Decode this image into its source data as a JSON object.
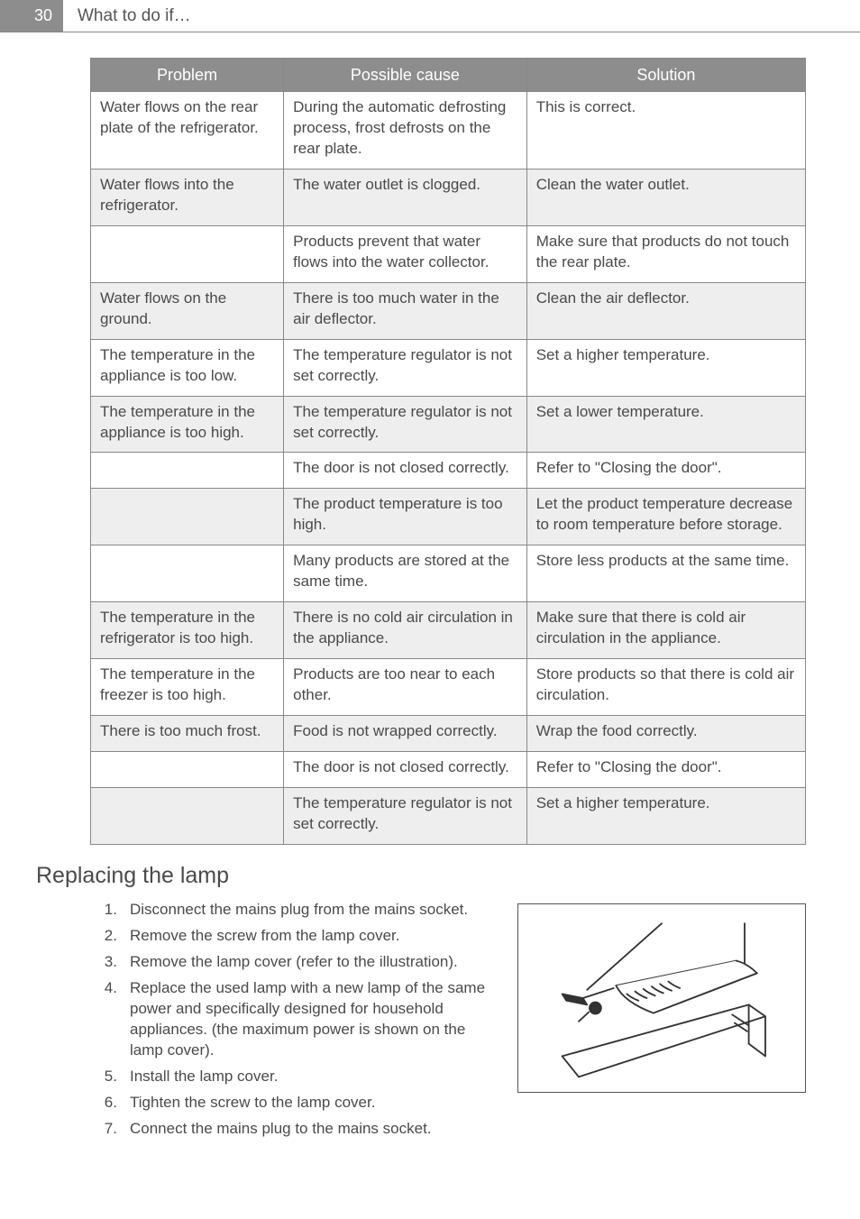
{
  "page_number": "30",
  "header_title": "What to do if…",
  "table": {
    "headers": [
      "Problem",
      "Possible cause",
      "Solution"
    ],
    "rows": [
      {
        "shaded": false,
        "cells": [
          "Water flows on the rear plate of the refrigerator.",
          "During the automatic defrosting process, frost defrosts on the rear plate.",
          "This is correct."
        ]
      },
      {
        "shaded": true,
        "cells": [
          "Water flows into the refrigerator.",
          "The water outlet is clogged.",
          "Clean the water outlet."
        ]
      },
      {
        "shaded": false,
        "cells": [
          "",
          "Products prevent that water flows into the water collector.",
          "Make sure that products do not touch the rear plate."
        ]
      },
      {
        "shaded": true,
        "cells": [
          "Water flows on the ground.",
          "There is too much water in the air deflector.",
          "Clean the air deflector."
        ]
      },
      {
        "shaded": false,
        "cells": [
          "The temperature in the appliance is too low.",
          "The temperature regulator is not set correctly.",
          "Set a higher temperature."
        ]
      },
      {
        "shaded": true,
        "cells": [
          "The temperature in the appliance is too high.",
          "The temperature regulator is not set correctly.",
          "Set a lower temperature."
        ]
      },
      {
        "shaded": false,
        "cells": [
          "",
          "The door is not closed correctly.",
          "Refer to \"Closing the door\"."
        ]
      },
      {
        "shaded": true,
        "cells": [
          "",
          "The product temperature is too high.",
          "Let the product temperature decrease to room temperature before storage."
        ]
      },
      {
        "shaded": false,
        "cells": [
          "",
          "Many products are stored at the same time.",
          "Store less products at the same time."
        ]
      },
      {
        "shaded": true,
        "cells": [
          "The temperature in the refrigerator is too high.",
          "There is no cold air circulation in the appliance.",
          "Make sure that there is cold air circulation in the appliance."
        ]
      },
      {
        "shaded": false,
        "cells": [
          "The temperature in the freezer is too high.",
          "Products are too near to each other.",
          "Store products so that there is cold air circulation."
        ]
      },
      {
        "shaded": true,
        "cells": [
          "There is too much frost.",
          "Food is not wrapped correctly.",
          "Wrap the food correctly."
        ]
      },
      {
        "shaded": false,
        "cells": [
          "",
          "The door is not closed correctly.",
          "Refer to \"Closing the door\"."
        ]
      },
      {
        "shaded": true,
        "cells": [
          "",
          "The temperature regulator is not set correctly.",
          "Set a higher temperature."
        ]
      }
    ]
  },
  "section_heading": "Replacing the lamp",
  "steps": [
    "Disconnect the mains plug from the mains socket.",
    "Remove the screw from the lamp cover.",
    "Remove the lamp cover (refer to the illustration).",
    "Replace the used lamp with a new lamp of the same power and specifically designed for household appliances. (the maximum power is shown on the lamp cover).",
    "Install the lamp cover.",
    "Tighten the screw to the lamp cover.",
    "Connect the mains plug to the mains socket."
  ],
  "colors": {
    "header_bg": "#8d8d8d",
    "header_fg": "#ffffff",
    "border": "#888888",
    "shaded_row": "#eeeeee",
    "text": "#4a4a4a"
  },
  "fonts": {
    "body_size_pt": 13,
    "heading_size_pt": 19,
    "th_size_pt": 14
  }
}
